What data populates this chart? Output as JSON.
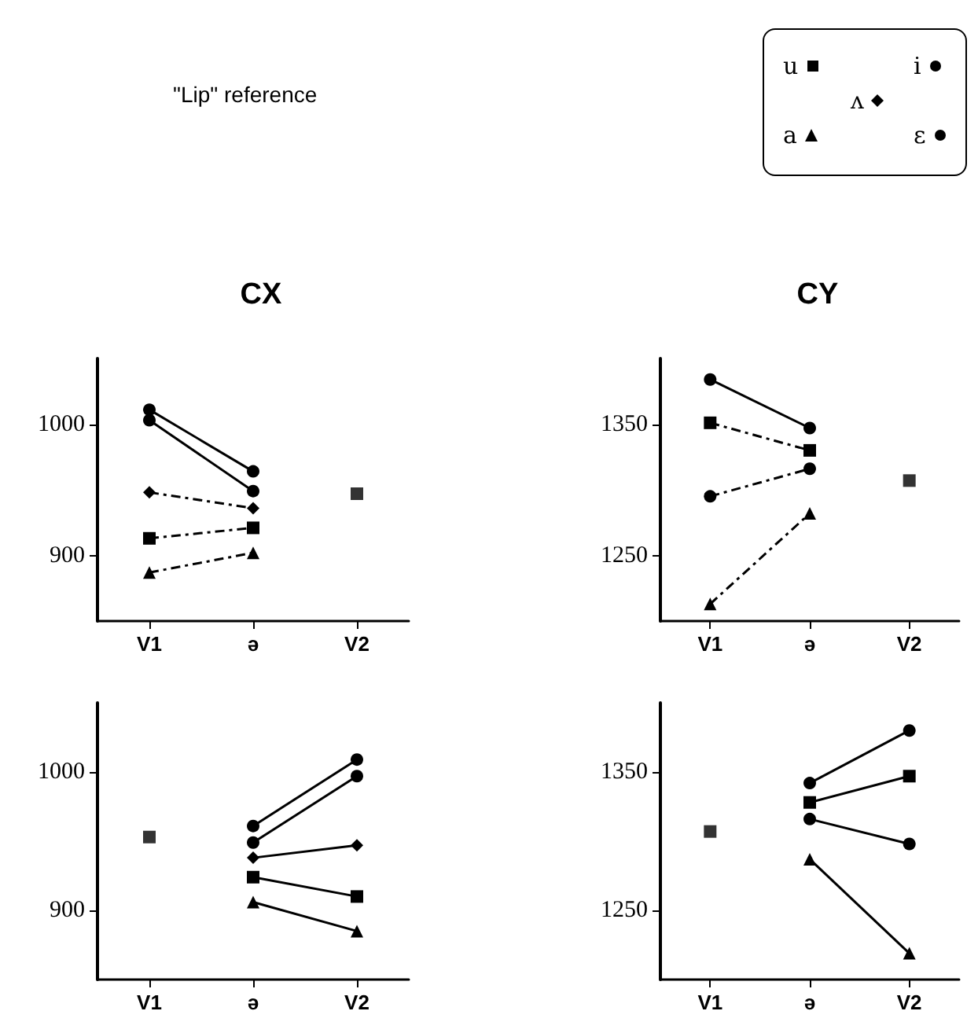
{
  "chart_data": [
    {
      "type": "line",
      "title": "CX",
      "annotations": [
        "\"Lip\" reference"
      ],
      "categories": [
        "V1",
        "ə",
        "V2"
      ],
      "ylim": [
        850,
        1050
      ],
      "yticks": [
        900,
        1000
      ],
      "legend": "top right",
      "grid": false,
      "series": [
        {
          "name": "u",
          "color": "#000000",
          "marker": "square",
          "line_style": "dashed",
          "values": [
            913,
            921,
            null
          ]
        },
        {
          "name": "i",
          "color": "#000000",
          "marker": "circle",
          "line_style": "solid",
          "values": [
            1003,
            949,
            null
          ]
        },
        {
          "name": "ʌ",
          "color": "#000000",
          "marker": "diamond",
          "line_style": "dashed",
          "values": [
            948,
            936,
            null
          ]
        },
        {
          "name": "a",
          "color": "#000000",
          "marker": "triangle",
          "line_style": "dashed",
          "values": [
            887,
            902,
            null
          ]
        },
        {
          "name": "ɛ",
          "color": "#000000",
          "marker": "circle",
          "line_style": "solid",
          "values": [
            1011,
            964,
            null
          ]
        },
        {
          "type": "scatter",
          "color": "#000000",
          "marker": "square",
          "values": [
            null,
            null,
            947
          ]
        }
      ]
    },
    {
      "type": "line",
      "title": "CY",
      "categories": [
        "V1",
        "ə",
        "V2"
      ],
      "ylim": [
        1200,
        1400
      ],
      "yticks": [
        1250,
        1350
      ],
      "grid": false,
      "series": [
        {
          "color": "#000000",
          "marker": "square",
          "line_style": "dashed",
          "values": [
            1351,
            1330,
            null
          ]
        },
        {
          "color": "#000000",
          "marker": "circle",
          "line_style": "solid",
          "values": [
            1384,
            1347,
            null
          ]
        },
        {
          "color": "#000000",
          "marker": "triangle",
          "line_style": "dashed",
          "values": [
            1213,
            1282,
            null
          ]
        },
        {
          "color": "#000000",
          "marker": "circle",
          "line_style": "dashed",
          "values": [
            1295,
            1316,
            null
          ]
        },
        {
          "type": "scatter",
          "color": "#000000",
          "marker": "square",
          "values": [
            null,
            null,
            1307
          ]
        }
      ]
    },
    {
      "type": "line",
      "categories": [
        "V1",
        "ə",
        "V2"
      ],
      "ylim": [
        850,
        1050
      ],
      "yticks": [
        900,
        1000
      ],
      "grid": false,
      "series": [
        {
          "color": "#000000",
          "marker": "square",
          "line_style": "solid",
          "values": [
            null,
            924,
            910
          ]
        },
        {
          "color": "#000000",
          "marker": "circle",
          "line_style": "solid",
          "values": [
            null,
            949,
            997
          ]
        },
        {
          "color": "#000000",
          "marker": "diamond",
          "line_style": "solid",
          "values": [
            null,
            938,
            947
          ]
        },
        {
          "color": "#000000",
          "marker": "triangle",
          "line_style": "solid",
          "values": [
            null,
            906,
            885
          ]
        },
        {
          "color": "#000000",
          "marker": "circle",
          "line_style": "solid",
          "values": [
            null,
            961,
            1009
          ]
        },
        {
          "type": "scatter",
          "color": "#000000",
          "marker": "square",
          "values": [
            953,
            null,
            null
          ]
        }
      ]
    },
    {
      "type": "line",
      "categories": [
        "V1",
        "ə",
        "V2"
      ],
      "ylim": [
        1200,
        1400
      ],
      "yticks": [
        1250,
        1350
      ],
      "grid": false,
      "series": [
        {
          "color": "#000000",
          "marker": "square",
          "line_style": "solid",
          "values": [
            null,
            1328,
            1347
          ]
        },
        {
          "color": "#000000",
          "marker": "circle",
          "line_style": "solid",
          "values": [
            null,
            1342,
            1380
          ]
        },
        {
          "color": "#000000",
          "marker": "triangle",
          "line_style": "solid",
          "values": [
            null,
            1287,
            1219
          ]
        },
        {
          "color": "#000000",
          "marker": "circle",
          "line_style": "solid",
          "values": [
            null,
            1316,
            1298
          ]
        },
        {
          "type": "scatter",
          "color": "#000000",
          "marker": "square",
          "values": [
            1307,
            null,
            null
          ]
        }
      ]
    }
  ]
}
